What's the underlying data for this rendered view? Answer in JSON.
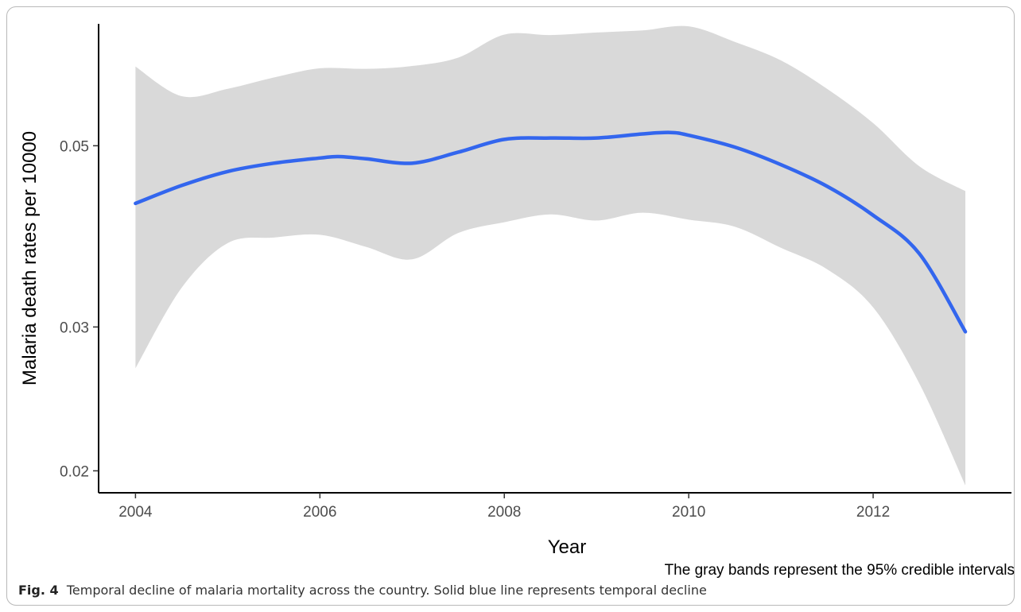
{
  "chart_data": {
    "type": "area",
    "xlabel": "Year",
    "ylabel": "Malaria death rates per 10000",
    "note": "The gray bands represent the 95% credible intervals",
    "x_scale": "linear",
    "y_scale": "log",
    "xlim": [
      2003.6,
      2013.5
    ],
    "ylim": [
      0.0188,
      0.0705
    ],
    "x_ticks": [
      2004,
      2006,
      2008,
      2010,
      2012
    ],
    "x_tick_labels": [
      "2004",
      "2006",
      "2008",
      "2010",
      "2012"
    ],
    "y_ticks": [
      0.02,
      0.03,
      0.05
    ],
    "y_tick_labels": [
      "0.02",
      "0.03",
      "0.05"
    ],
    "grid": false,
    "legend": "none",
    "series": [
      {
        "kind": "line",
        "color": "#3366ee",
        "x": [
          2004,
          2004.5,
          2005,
          2005.5,
          2006,
          2006.2,
          2006.5,
          2007,
          2007.5,
          2008,
          2008.5,
          2009,
          2009.5,
          2009.8,
          2010,
          2010.5,
          2011,
          2011.5,
          2012,
          2012.5,
          2013
        ],
        "y": [
          0.0425,
          0.0447,
          0.0465,
          0.0476,
          0.0483,
          0.0485,
          0.0482,
          0.0476,
          0.0491,
          0.0509,
          0.0511,
          0.0511,
          0.0517,
          0.0519,
          0.0515,
          0.0498,
          0.0474,
          0.0446,
          0.0411,
          0.0369,
          0.0296
        ]
      },
      {
        "kind": "band",
        "color": "#d9d9d9",
        "x": [
          2004,
          2004.5,
          2005,
          2005.5,
          2006,
          2006.5,
          2007,
          2007.5,
          2008,
          2008.5,
          2009,
          2009.5,
          2010,
          2010.5,
          2011,
          2011.5,
          2012,
          2012.5,
          2013
        ],
        "upper": [
          0.0625,
          0.0575,
          0.0587,
          0.0606,
          0.0622,
          0.0621,
          0.0626,
          0.0641,
          0.0684,
          0.0683,
          0.0688,
          0.0692,
          0.07,
          0.067,
          0.0636,
          0.0587,
          0.0533,
          0.0472,
          0.044
        ],
        "lower": [
          0.0267,
          0.0335,
          0.038,
          0.0386,
          0.0389,
          0.0376,
          0.0363,
          0.0391,
          0.0403,
          0.0412,
          0.0405,
          0.0414,
          0.0406,
          0.0398,
          0.0375,
          0.0353,
          0.0317,
          0.0256,
          0.0192
        ]
      }
    ]
  },
  "caption": {
    "label": "Fig. 4",
    "text": "Temporal decline of malaria mortality across the country. Solid blue line represents temporal decline"
  }
}
